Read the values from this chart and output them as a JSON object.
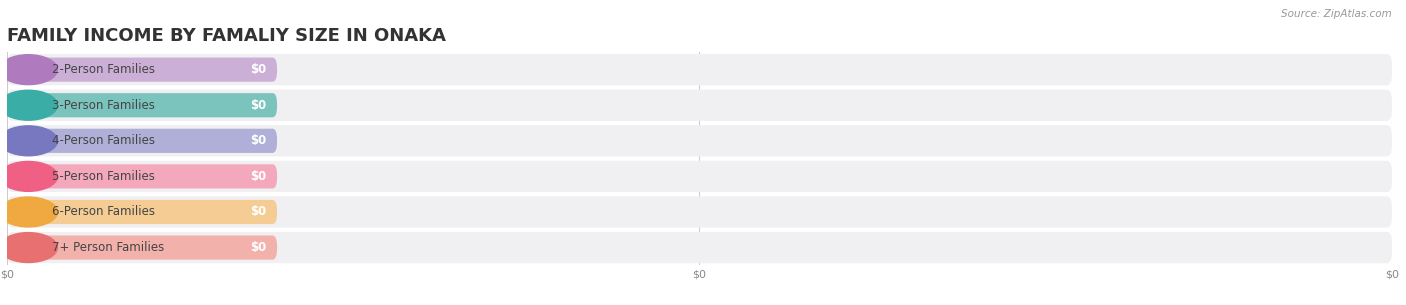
{
  "title": "FAMILY INCOME BY FAMALIY SIZE IN ONAKA",
  "source": "Source: ZipAtlas.com",
  "categories": [
    "2-Person Families",
    "3-Person Families",
    "4-Person Families",
    "5-Person Families",
    "6-Person Families",
    "7+ Person Families"
  ],
  "values": [
    0,
    0,
    0,
    0,
    0,
    0
  ],
  "bar_colors": [
    "#c9a8d4",
    "#6ec0b9",
    "#a8a8d4",
    "#f4a0b5",
    "#f5c98a",
    "#f4aaa5"
  ],
  "dot_colors": [
    "#b07abf",
    "#3aada6",
    "#7878c0",
    "#f06085",
    "#f0a840",
    "#e87070"
  ],
  "background_color": "#ffffff",
  "row_bg_color": "#f0f0f2",
  "title_fontsize": 13,
  "label_fontsize": 8.5,
  "value_fontsize": 8.5,
  "source_fontsize": 7.5,
  "xlim": [
    0,
    100
  ],
  "xtick_positions": [
    0,
    50,
    100
  ],
  "xtick_labels": [
    "$0",
    "$0",
    "$0"
  ]
}
